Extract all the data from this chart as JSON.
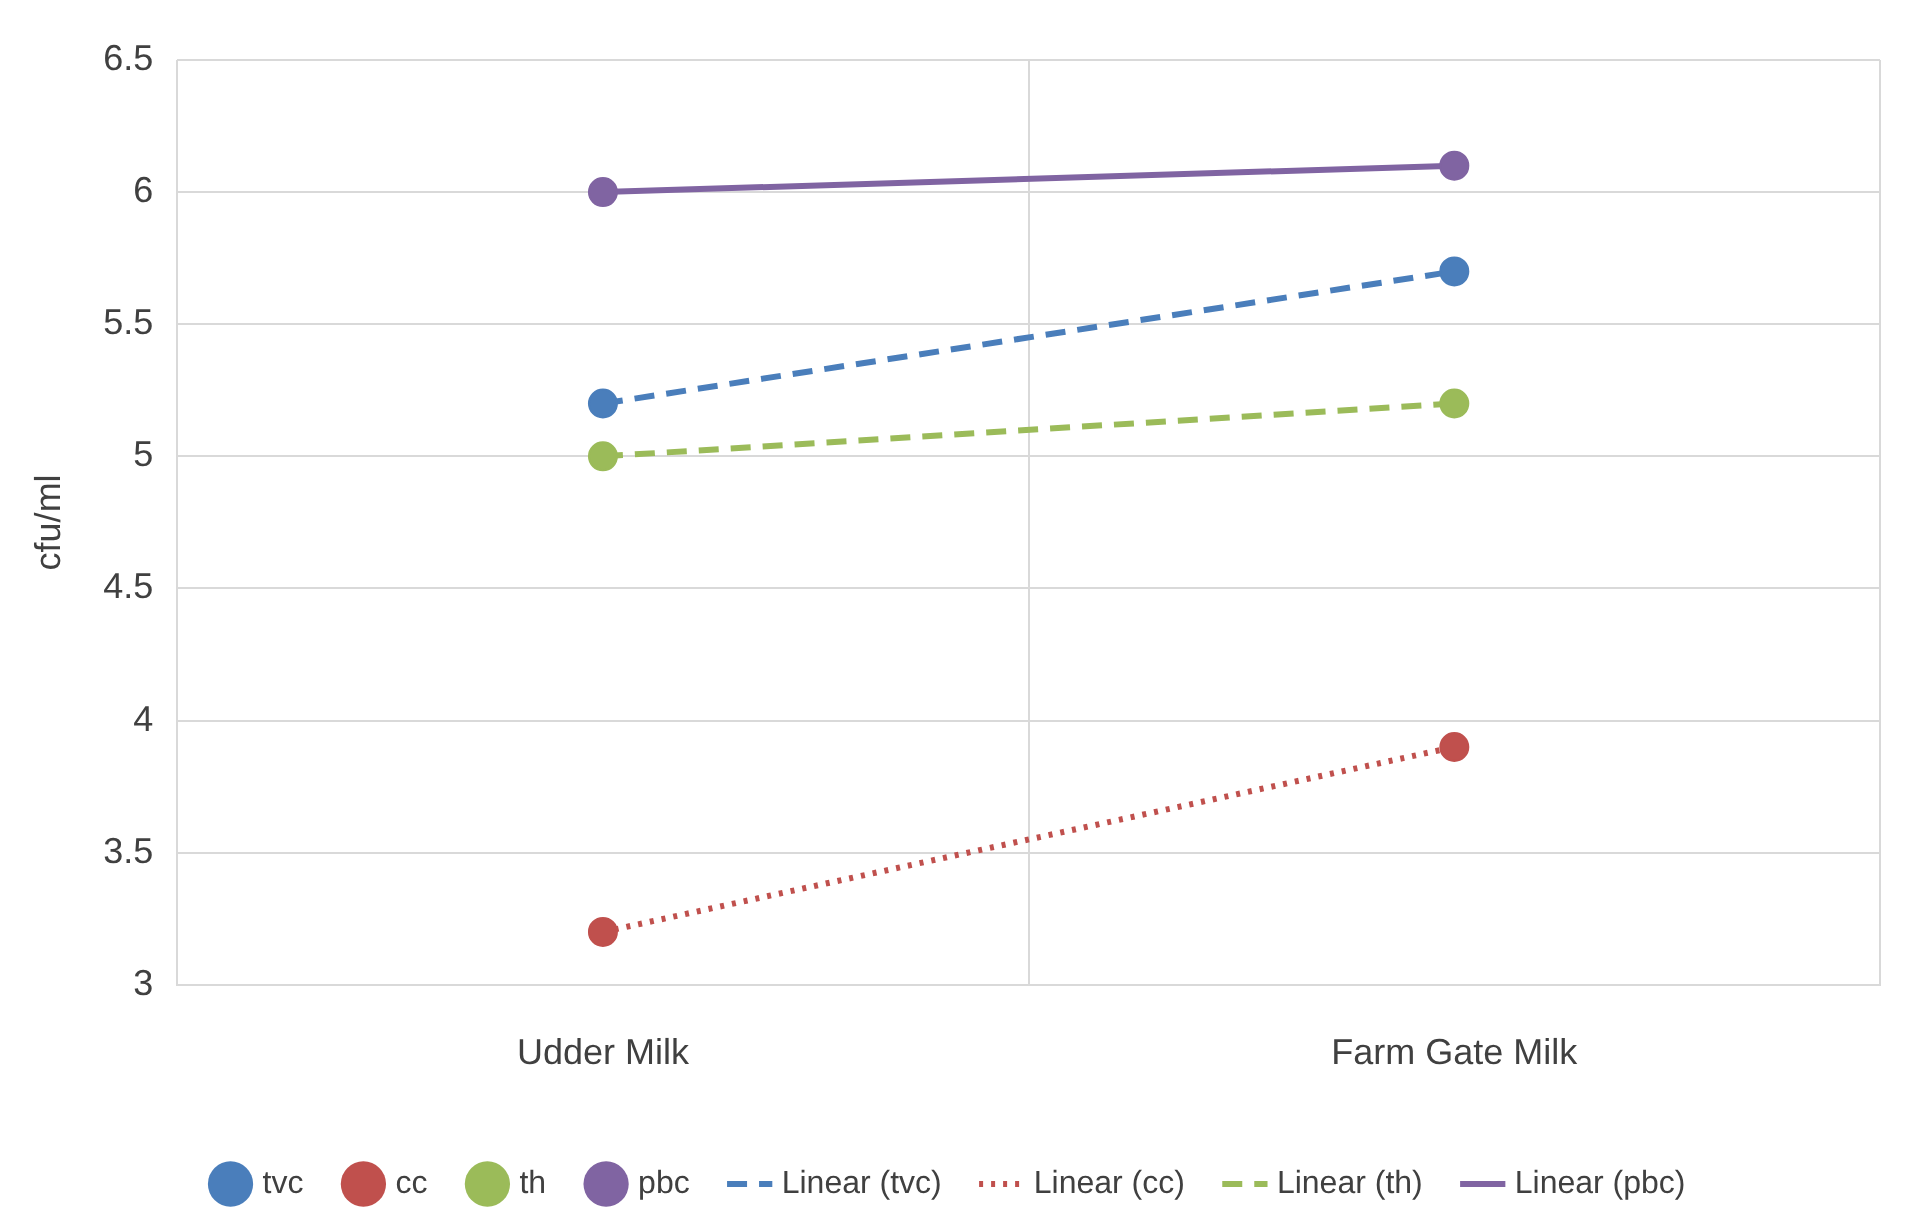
{
  "chart_data": {
    "type": "line",
    "ylabel": "cfu/ml",
    "categories": [
      "Udder Milk",
      "Farm Gate Milk"
    ],
    "ylim": [
      3,
      6.5
    ],
    "yticks": [
      3,
      3.5,
      4,
      4.5,
      5,
      5.5,
      6,
      6.5
    ],
    "grid": true,
    "legend": "bottom",
    "series": [
      {
        "name": "tvc",
        "type": "scatter",
        "marker": "circle",
        "color": "#4a7ebb",
        "values": [
          5.2,
          5.7
        ]
      },
      {
        "name": "cc",
        "type": "scatter",
        "marker": "circle",
        "color": "#c0504d",
        "values": [
          3.2,
          3.9
        ]
      },
      {
        "name": "th",
        "type": "scatter",
        "marker": "circle",
        "color": "#9bbb59",
        "values": [
          5.0,
          5.2
        ]
      },
      {
        "name": "pbc",
        "type": "scatter",
        "marker": "circle",
        "color": "#8064a2",
        "values": [
          6.0,
          6.1
        ]
      },
      {
        "name": "Linear (tvc)",
        "type": "line",
        "marker": "none",
        "line_style": "dashed",
        "color": "#4a7ebb",
        "values": [
          5.2,
          5.7
        ]
      },
      {
        "name": "Linear (cc)",
        "type": "line",
        "marker": "none",
        "line_style": "dotted",
        "color": "#c0504d",
        "values": [
          3.2,
          3.9
        ]
      },
      {
        "name": "Linear (th)",
        "type": "line",
        "marker": "none",
        "line_style": "dashed",
        "color": "#9bbb59",
        "values": [
          5.0,
          5.2
        ]
      },
      {
        "name": "Linear (pbc)",
        "type": "line",
        "marker": "none",
        "line_style": "solid",
        "color": "#8064a2",
        "values": [
          6.0,
          6.1
        ]
      }
    ]
  }
}
